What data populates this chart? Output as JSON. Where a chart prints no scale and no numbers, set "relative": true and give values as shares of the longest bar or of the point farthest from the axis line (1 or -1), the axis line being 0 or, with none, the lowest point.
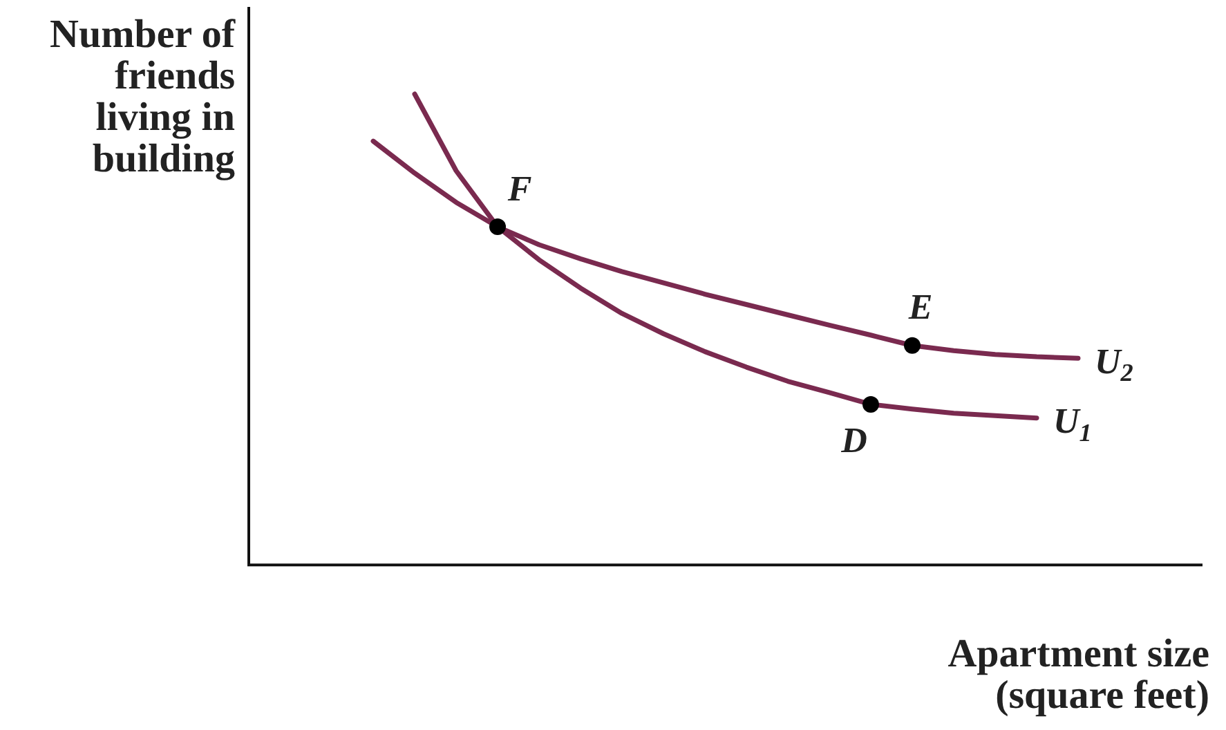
{
  "chart_data": {
    "type": "line",
    "relative": true,
    "xlabel": "Apartment size (square feet)",
    "ylabel": "Number of friends living in building",
    "grid": false,
    "legend": false,
    "marker": "none",
    "line_style": "solid",
    "categories": [
      null,
      null,
      null,
      null,
      null,
      null,
      null,
      null,
      null,
      null,
      null,
      null,
      null,
      null,
      null,
      null,
      null,
      null,
      null,
      null,
      null,
      null,
      null,
      null
    ],
    "series": [
      {
        "name": "U$_{1}$",
        "color": "#7a2a4f",
        "values": [
          null,
          null,
          null,
          null,
          1.0,
          0.837,
          0.718,
          0.648,
          0.588,
          0.534,
          0.491,
          0.453,
          0.42,
          0.39,
          0.366,
          0.341,
          0.331,
          0.322,
          0.317,
          0.312,
          null,
          null,
          null,
          null
        ]
      },
      {
        "name": "U$_{2}$",
        "color": "#7a2a4f",
        "values": [
          null,
          null,
          null,
          0.9,
          0.832,
          0.77,
          0.718,
          0.68,
          0.65,
          0.623,
          0.599,
          0.575,
          0.553,
          0.531,
          0.509,
          0.488,
          0.466,
          0.455,
          0.447,
          0.442,
          0.439,
          null,
          null,
          null
        ]
      }
    ],
    "annotations": [
      {
        "text": "F",
        "y": 0.718
      },
      {
        "text": "E",
        "y": 0.466
      },
      {
        "text": "D",
        "y": 0.341
      }
    ]
  }
}
